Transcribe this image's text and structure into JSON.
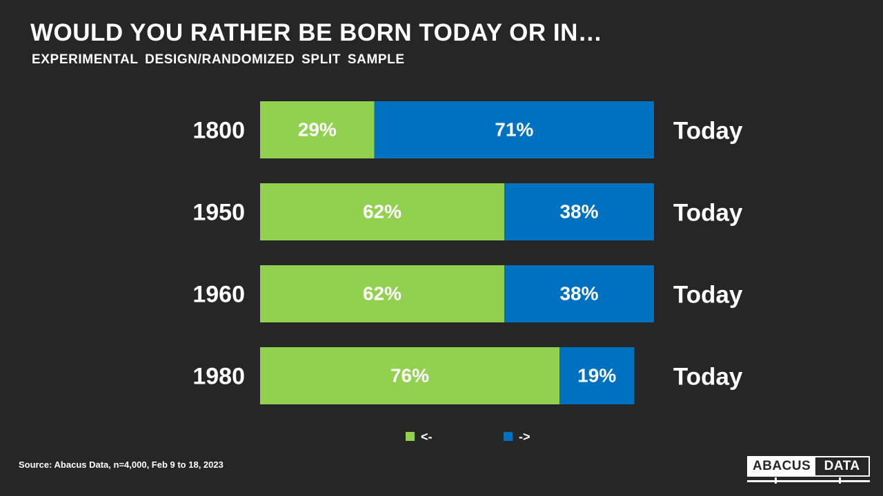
{
  "header": {
    "title": "WOULD YOU RATHER BE BORN TODAY OR IN…",
    "subtitle": "EXPERIMENTAL DESIGN/RANDOMIZED SPLIT SAMPLE"
  },
  "chart_data": {
    "type": "bar",
    "orientation": "horizontal",
    "stacked": true,
    "categories": [
      "1800",
      "1950",
      "1960",
      "1980"
    ],
    "right_labels": [
      "Today",
      "Today",
      "Today",
      "Today"
    ],
    "series": [
      {
        "name": "<-",
        "color": "#92d050",
        "values": [
          29,
          62,
          62,
          76
        ]
      },
      {
        "name": "->",
        "color": "#0070c0",
        "values": [
          71,
          38,
          38,
          19
        ]
      }
    ],
    "data_label_suffix": "%",
    "xlim": [
      0,
      100
    ],
    "grid": false,
    "legend_position": "bottom"
  },
  "footer": {
    "source": "Source: Abacus Data, n=4,000,  Feb 9 to 18, 2023",
    "logo_left": "ABACUS",
    "logo_right": "DATA"
  }
}
